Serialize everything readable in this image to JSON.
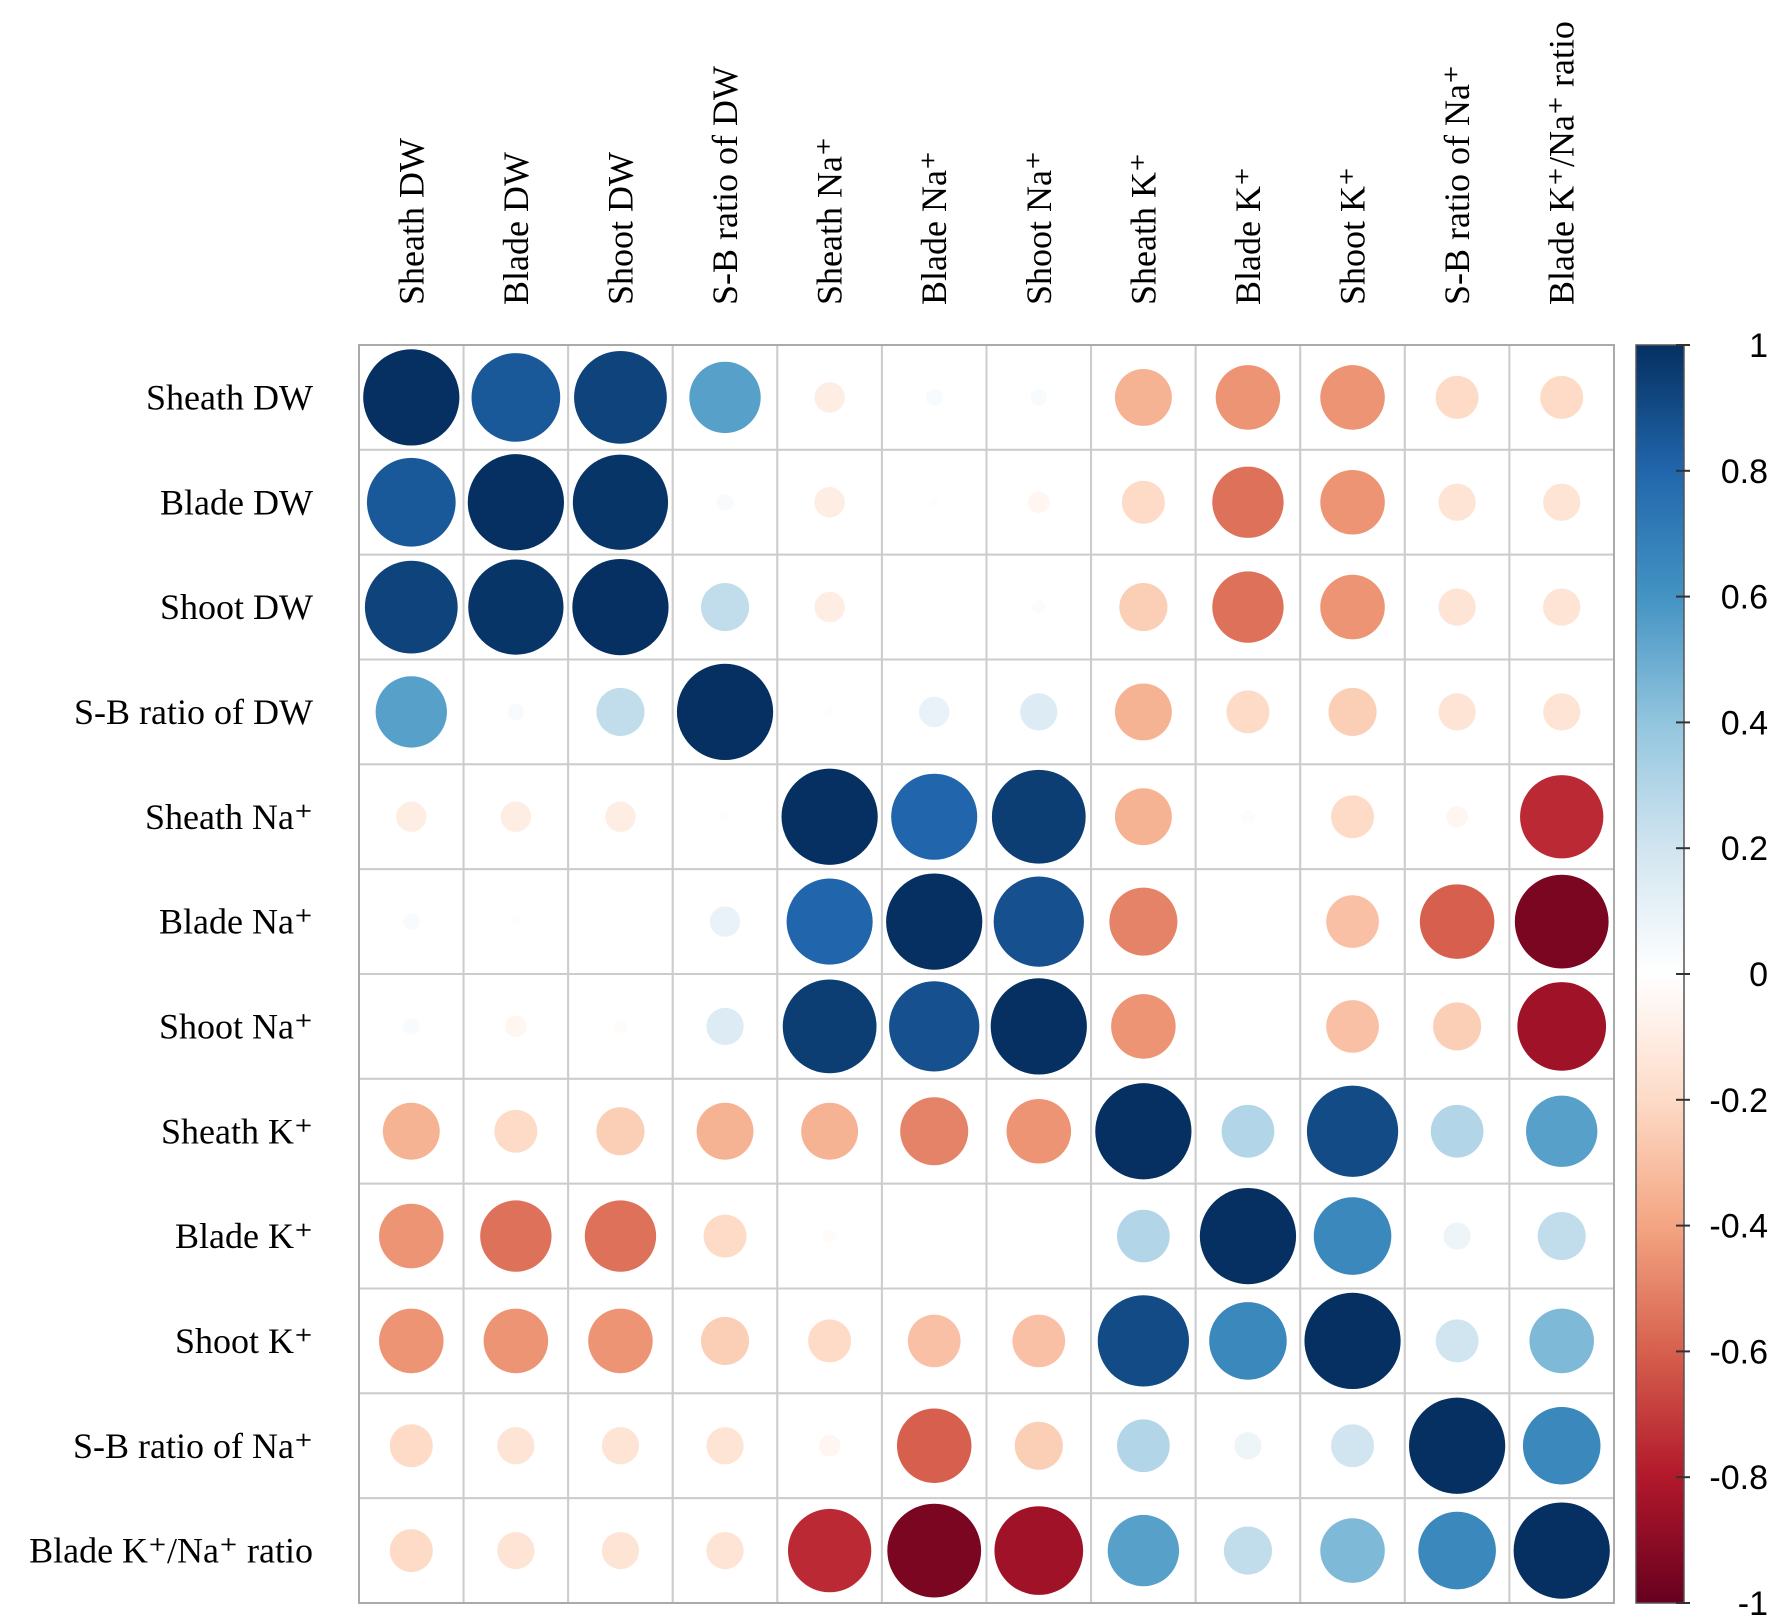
{
  "chart_data": {
    "type": "heatmap",
    "style": "corrplot-circle",
    "variables": [
      "Sheath DW",
      "Blade DW",
      "Shoot DW",
      "S-B ratio of DW",
      "Sheath Na⁺",
      "Blade Na⁺",
      "Shoot Na⁺",
      "Sheath K⁺",
      "Blade K⁺",
      "Shoot K⁺",
      "S-B ratio of Na⁺",
      "Blade K⁺/Na⁺ ratio"
    ],
    "matrix": [
      [
        1,
        0.85,
        0.93,
        0.55,
        -0.1,
        0.03,
        0.03,
        -0.35,
        -0.45,
        -0.45,
        -0.2,
        -0.2
      ],
      [
        0.85,
        1,
        0.98,
        0.03,
        -0.1,
        -0.01,
        -0.05,
        -0.2,
        -0.55,
        -0.45,
        -0.15,
        -0.15
      ],
      [
        0.93,
        0.98,
        1,
        0.25,
        -0.1,
        0,
        -0.02,
        -0.25,
        -0.55,
        -0.45,
        -0.15,
        -0.15
      ],
      [
        0.55,
        0.03,
        0.25,
        1,
        -0.01,
        0.1,
        0.15,
        -0.35,
        -0.2,
        -0.25,
        -0.15,
        -0.15
      ],
      [
        -0.1,
        -0.1,
        -0.1,
        -0.01,
        1,
        0.8,
        0.95,
        -0.35,
        -0.02,
        -0.2,
        -0.05,
        -0.75
      ],
      [
        0.03,
        -0.01,
        0,
        0.1,
        0.8,
        1,
        0.88,
        -0.5,
        0,
        -0.3,
        -0.6,
        -0.95
      ],
      [
        0.03,
        -0.05,
        -0.02,
        0.15,
        0.95,
        0.88,
        1,
        -0.45,
        0,
        -0.3,
        -0.25,
        -0.85
      ],
      [
        -0.35,
        -0.2,
        -0.25,
        -0.35,
        -0.35,
        -0.5,
        -0.45,
        1,
        0.3,
        0.9,
        0.3,
        0.55
      ],
      [
        -0.45,
        -0.55,
        -0.55,
        -0.2,
        -0.02,
        0,
        0,
        0.3,
        1,
        0.65,
        0.08,
        0.25
      ],
      [
        -0.45,
        -0.45,
        -0.45,
        -0.25,
        -0.2,
        -0.3,
        -0.3,
        0.9,
        0.65,
        1,
        0.2,
        0.45
      ],
      [
        -0.2,
        -0.15,
        -0.15,
        -0.15,
        -0.05,
        -0.6,
        -0.25,
        0.3,
        0.08,
        0.2,
        1,
        0.65
      ],
      [
        -0.2,
        -0.15,
        -0.15,
        -0.15,
        -0.75,
        -0.95,
        -0.85,
        0.55,
        0.25,
        0.45,
        0.65,
        1
      ]
    ],
    "colorbar": {
      "range": [
        -1,
        1
      ],
      "ticks": [
        "1",
        "0.8",
        "0.6",
        "0.4",
        "0.2",
        "0",
        "-0.2",
        "-0.4",
        "-0.6",
        "-0.8",
        "-1"
      ],
      "tick_values": [
        1,
        0.8,
        0.6,
        0.4,
        0.2,
        0,
        -0.2,
        -0.4,
        -0.6,
        -0.8,
        -1
      ],
      "placement": "right"
    },
    "palette": [
      "#67001F",
      "#B2182B",
      "#D6604D",
      "#F4A582",
      "#FDDBC7",
      "#FFFFFF",
      "#D1E5F0",
      "#92C5DE",
      "#4393C3",
      "#2166AC",
      "#053061"
    ],
    "grid": true,
    "grid_color": "#cccccc"
  }
}
